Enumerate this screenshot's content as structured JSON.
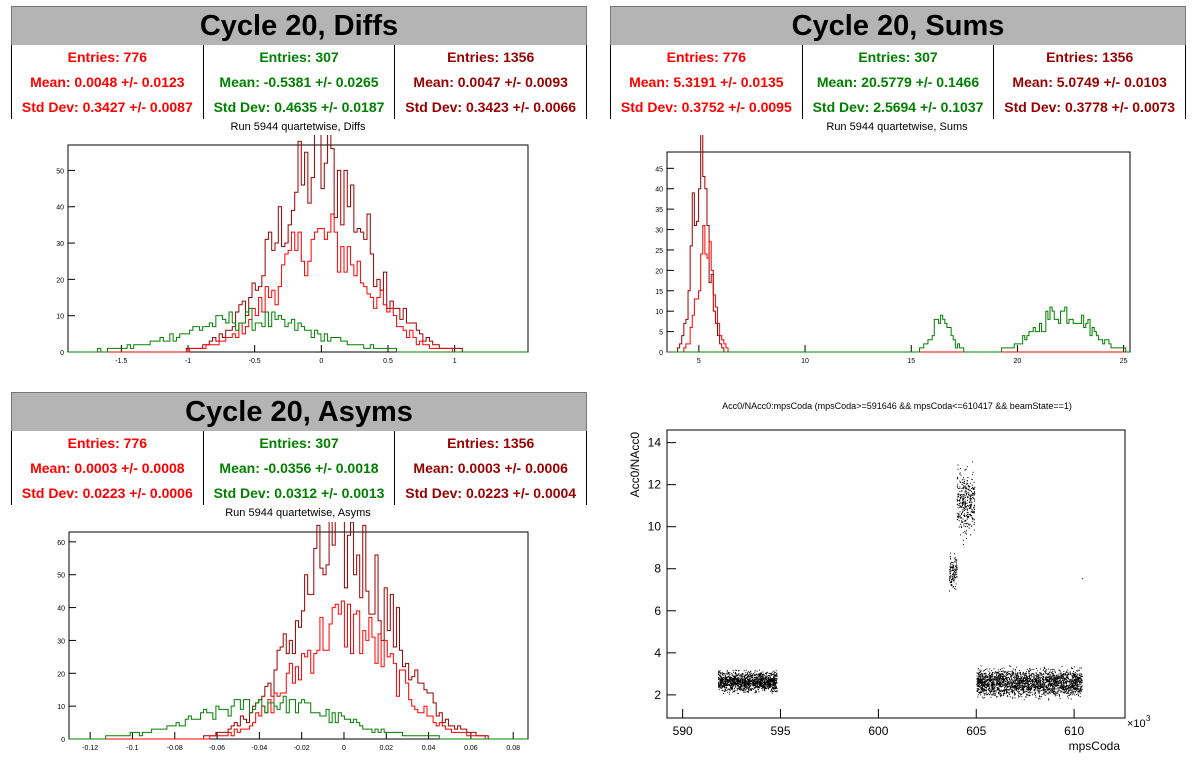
{
  "colors": {
    "red": "#ff0000",
    "green": "#008000",
    "darkred": "#990000",
    "title_bg": "#b4b4b4"
  },
  "panels": {
    "diffs": {
      "title": "Cycle 20, Diffs",
      "stats": [
        {
          "color": "red",
          "entries": "Entries: 776",
          "mean": "Mean: 0.0048 +/- 0.0123",
          "std": "Std Dev: 0.3427 +/- 0.0087"
        },
        {
          "color": "green",
          "entries": "Entries: 307",
          "mean": "Mean: -0.5381 +/- 0.0265",
          "std": "Std Dev: 0.4635 +/- 0.0187"
        },
        {
          "color": "darkred",
          "entries": "Entries: 1356",
          "mean": "Mean: 0.0047 +/- 0.0093",
          "std": "Std Dev: 0.3423 +/- 0.0066"
        }
      ],
      "subtitle": "Run 5944 quartetwise, Diffs"
    },
    "sums": {
      "title": "Cycle 20, Sums",
      "stats": [
        {
          "color": "red",
          "entries": "Entries: 776",
          "mean": "Mean: 5.3191 +/- 0.0135",
          "std": "Std Dev: 0.3752 +/- 0.0095"
        },
        {
          "color": "green",
          "entries": "Entries: 307",
          "mean": "Mean: 20.5779 +/- 0.1466",
          "std": "Std Dev: 2.5694 +/- 0.1037"
        },
        {
          "color": "darkred",
          "entries": "Entries: 1356",
          "mean": "Mean: 5.0749 +/- 0.0103",
          "std": "Std Dev: 0.3778 +/- 0.0073"
        }
      ],
      "subtitle": "Run 5944 quartetwise, Sums"
    },
    "asyms": {
      "title": "Cycle 20, Asyms",
      "stats": [
        {
          "color": "red",
          "entries": "Entries: 776",
          "mean": "Mean: 0.0003 +/- 0.0008",
          "std": "Std Dev: 0.0223 +/- 0.0006"
        },
        {
          "color": "green",
          "entries": "Entries: 307",
          "mean": "Mean: -0.0356 +/- 0.0018",
          "std": "Std Dev: 0.0312 +/- 0.0013"
        },
        {
          "color": "darkred",
          "entries": "Entries: 1356",
          "mean": "Mean: 0.0003 +/- 0.0006",
          "std": "Std Dev: 0.0223 +/- 0.0004"
        }
      ],
      "subtitle": "Run 5944 quartetwise, Asyms"
    },
    "scatter": {
      "title": "Acc0/NAcc0:mpsCoda (mpsCoda>=591646 && mpsCoda<=610417 && beamState==1)"
    }
  },
  "chart_data": [
    {
      "type": "histogram",
      "title": "Run 5944 quartetwise, Diffs",
      "xlim": [
        -1.9,
        1.55
      ],
      "ylim": [
        0,
        57
      ],
      "xticks": [
        -1.5,
        -1,
        -0.5,
        0,
        0.5,
        1
      ],
      "xtick_labels": [
        "-1.5",
        "-1",
        "-0.5",
        "0",
        "0.5",
        "1"
      ],
      "yticks": [
        0,
        10,
        20,
        30,
        40,
        50
      ],
      "series": [
        {
          "color": "darkred",
          "type": "gaussian",
          "mean": 0.0047,
          "std": 0.3423,
          "peak": 51
        },
        {
          "color": "red",
          "type": "gaussian",
          "mean": 0.0048,
          "std": 0.3427,
          "peak": 31
        },
        {
          "color": "green",
          "type": "gaussian",
          "mean": -0.5381,
          "std": 0.4635,
          "peak": 9
        }
      ]
    },
    {
      "type": "histogram",
      "title": "Run 5944 quartetwise, Sums",
      "xlim": [
        3.5,
        25.3
      ],
      "ylim": [
        0,
        49
      ],
      "xticks": [
        5,
        10,
        15,
        20,
        25
      ],
      "xtick_labels": [
        "5",
        "10",
        "15",
        "20",
        "25"
      ],
      "yticks": [
        0,
        5,
        10,
        15,
        20,
        25,
        30,
        35,
        40,
        45
      ],
      "series": [
        {
          "color": "darkred",
          "type": "gaussian",
          "mean": 5.0749,
          "std": 0.3778,
          "peak": 47
        },
        {
          "color": "red",
          "type": "gaussian",
          "mean": 5.3191,
          "std": 0.3752,
          "peak": 25
        },
        {
          "color": "green",
          "type": "bimodal",
          "modes": [
            {
              "mean": 16.4,
              "std": 0.45,
              "peak": 7
            },
            {
              "mean": 22.2,
              "std": 1.2,
              "peak": 10
            }
          ]
        }
      ]
    },
    {
      "type": "histogram",
      "title": "Run 5944 quartetwise, Asyms",
      "xlim": [
        -0.13,
        0.087
      ],
      "ylim": [
        0,
        63
      ],
      "xticks": [
        -0.12,
        -0.1,
        -0.08,
        -0.06,
        -0.04,
        -0.02,
        0,
        0.02,
        0.04,
        0.06,
        0.08
      ],
      "xtick_labels": [
        "-0.12",
        "-0.1",
        "-0.08",
        "-0.06",
        "-0.04",
        "-0.02",
        "0",
        "0.02",
        "0.04",
        "0.06",
        "0.08"
      ],
      "yticks": [
        0,
        10,
        20,
        30,
        40,
        50,
        60
      ],
      "series": [
        {
          "color": "darkred",
          "type": "gaussian",
          "mean": 0.0003,
          "std": 0.0223,
          "peak": 59
        },
        {
          "color": "red",
          "type": "gaussian",
          "mean": 0.0003,
          "std": 0.0223,
          "peak": 35
        },
        {
          "color": "green",
          "type": "gaussian",
          "mean": -0.0356,
          "std": 0.0312,
          "peak": 11
        }
      ]
    },
    {
      "type": "scatter",
      "title": "Acc0/NAcc0:mpsCoda (mpsCoda>=591646 && mpsCoda<=610417 && beamState==1)",
      "xlabel": "mpsCoda",
      "ylabel": "Acc0/NAcc0",
      "xlim": [
        589.2,
        612.6
      ],
      "ylim": [
        0.9,
        14.6
      ],
      "xticks": [
        590,
        595,
        600,
        605,
        610
      ],
      "xtick_labels": [
        "590",
        "595",
        "600",
        "605",
        "610"
      ],
      "x_exponent": "×10",
      "x_exponent_power": "3",
      "yticks": [
        2,
        4,
        6,
        8,
        10,
        12,
        14
      ],
      "clusters": [
        {
          "x": [
            591.8,
            594.8
          ],
          "y": [
            2.0,
            3.3
          ],
          "n": 1400
        },
        {
          "x": [
            603.6,
            604.0
          ],
          "y": [
            6.8,
            9.0
          ],
          "n": 120
        },
        {
          "x": [
            604.0,
            604.9
          ],
          "y": [
            9.0,
            13.3
          ],
          "n": 350
        },
        {
          "x": [
            605.0,
            610.4
          ],
          "y": [
            1.7,
            3.5
          ],
          "n": 2400
        }
      ],
      "outliers": [
        [
          610.4,
          7.55
        ]
      ]
    }
  ]
}
